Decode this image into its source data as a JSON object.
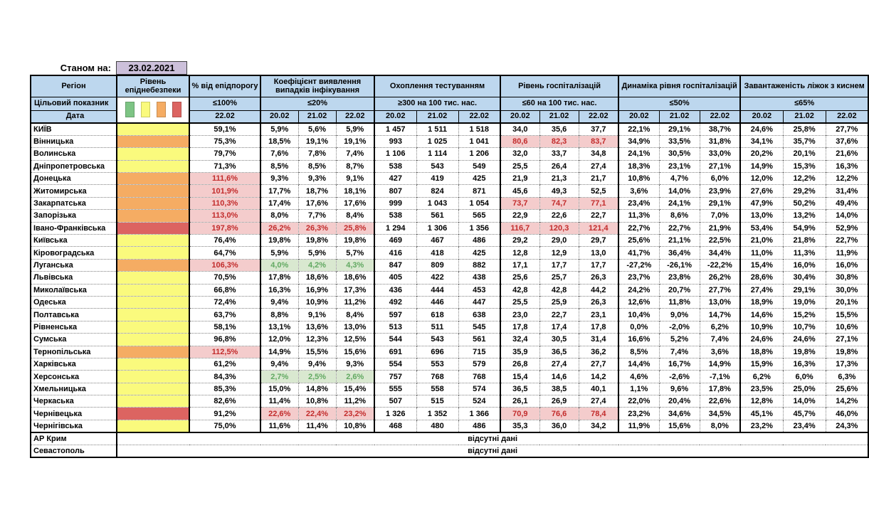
{
  "meta": {
    "as_of_label": "Станом на:",
    "as_of_date": "23.02.2021"
  },
  "columns": {
    "region": "Регіон",
    "level": "Рівень епіднебезпеки",
    "pct_threshold": "% від епідпорогу",
    "detection": "Коефіцієнт виявлення випадків інфікування",
    "testing": "Охоплення тестуванням",
    "hospitalization": "Рівень госпіталізацій",
    "dynamics": "Динаміка рівня госпіталізацій",
    "beds": "Завантаженість ліжок з киснем"
  },
  "labels": {
    "target_row": "Цільовий показник",
    "date_row": "Дата"
  },
  "targets": {
    "pct": "≤100%",
    "detection": "≤20%",
    "testing": "≥300 на 100 тис. нас.",
    "hospitalization": "≤60 на 100 тис. нас.",
    "dynamics": "≤50%",
    "beds": "≤65%"
  },
  "dates": {
    "single": "22.02",
    "triple": [
      "20.02",
      "21.02",
      "22.02"
    ]
  },
  "legend": {
    "colors": [
      "#7DC484",
      "#FAFA7D",
      "#F5AC63",
      "#DC6461"
    ],
    "names": [
      "green",
      "yellow",
      "orange",
      "red"
    ]
  },
  "no_data_text": "відсутні дані",
  "regions": [
    {
      "name": "КИЇВ",
      "level": "yellow",
      "pct": "59,1%",
      "pct_hl": "",
      "det": [
        "5,9%",
        "5,6%",
        "5,9%"
      ],
      "det_hl": "",
      "test": [
        "1 457",
        "1 511",
        "1 518"
      ],
      "hosp": [
        "34,0",
        "35,6",
        "37,7"
      ],
      "hosp_hl": "",
      "dyn": [
        "22,1%",
        "29,1%",
        "38,7%"
      ],
      "beds": [
        "24,6%",
        "25,8%",
        "27,7%"
      ]
    },
    {
      "name": "Вінницька",
      "level": "orange",
      "pct": "75,3%",
      "pct_hl": "",
      "det": [
        "18,5%",
        "19,1%",
        "19,1%"
      ],
      "det_hl": "",
      "test": [
        "993",
        "1 025",
        "1 041"
      ],
      "hosp": [
        "80,6",
        "82,3",
        "83,7"
      ],
      "hosp_hl": "pink",
      "dyn": [
        "34,9%",
        "33,5%",
        "31,8%"
      ],
      "beds": [
        "34,1%",
        "35,7%",
        "37,6%"
      ]
    },
    {
      "name": "Волинська",
      "level": "yellow",
      "pct": "79,7%",
      "pct_hl": "",
      "det": [
        "7,6%",
        "7,8%",
        "7,4%"
      ],
      "det_hl": "",
      "test": [
        "1 106",
        "1 114",
        "1 206"
      ],
      "hosp": [
        "32,0",
        "33,7",
        "34,8"
      ],
      "hosp_hl": "",
      "dyn": [
        "24,1%",
        "30,5%",
        "33,0%"
      ],
      "beds": [
        "20,2%",
        "20,1%",
        "21,6%"
      ]
    },
    {
      "name": "Дніпропетровська",
      "level": "yellow",
      "pct": "71,3%",
      "pct_hl": "",
      "det": [
        "8,5%",
        "8,5%",
        "8,7%"
      ],
      "det_hl": "",
      "test": [
        "538",
        "543",
        "549"
      ],
      "hosp": [
        "25,5",
        "26,4",
        "27,4"
      ],
      "hosp_hl": "",
      "dyn": [
        "18,3%",
        "23,1%",
        "27,1%"
      ],
      "beds": [
        "14,9%",
        "15,3%",
        "16,3%"
      ]
    },
    {
      "name": "Донецька",
      "level": "orange",
      "pct": "111,6%",
      "pct_hl": "pink",
      "det": [
        "9,3%",
        "9,3%",
        "9,1%"
      ],
      "det_hl": "",
      "test": [
        "427",
        "419",
        "425"
      ],
      "hosp": [
        "21,9",
        "21,3",
        "21,7"
      ],
      "hosp_hl": "",
      "dyn": [
        "10,8%",
        "4,7%",
        "6,0%"
      ],
      "beds": [
        "12,0%",
        "12,2%",
        "12,2%"
      ]
    },
    {
      "name": "Житомирська",
      "level": "orange",
      "pct": "101,9%",
      "pct_hl": "pink",
      "det": [
        "17,7%",
        "18,7%",
        "18,1%"
      ],
      "det_hl": "",
      "test": [
        "807",
        "824",
        "871"
      ],
      "hosp": [
        "45,6",
        "49,3",
        "52,5"
      ],
      "hosp_hl": "",
      "dyn": [
        "3,6%",
        "14,0%",
        "23,9%"
      ],
      "beds": [
        "27,6%",
        "29,2%",
        "31,4%"
      ]
    },
    {
      "name": "Закарпатська",
      "level": "orange",
      "pct": "110,3%",
      "pct_hl": "pink",
      "det": [
        "17,4%",
        "17,6%",
        "17,6%"
      ],
      "det_hl": "",
      "test": [
        "999",
        "1 043",
        "1 054"
      ],
      "hosp": [
        "73,7",
        "74,7",
        "77,1"
      ],
      "hosp_hl": "pink",
      "dyn": [
        "23,4%",
        "24,1%",
        "29,1%"
      ],
      "beds": [
        "47,9%",
        "50,2%",
        "49,4%"
      ]
    },
    {
      "name": "Запорізька",
      "level": "orange",
      "pct": "113,0%",
      "pct_hl": "pink",
      "det": [
        "8,0%",
        "7,7%",
        "8,4%"
      ],
      "det_hl": "",
      "test": [
        "538",
        "561",
        "565"
      ],
      "hosp": [
        "22,9",
        "22,6",
        "22,7"
      ],
      "hosp_hl": "",
      "dyn": [
        "11,3%",
        "8,6%",
        "7,0%"
      ],
      "beds": [
        "13,0%",
        "13,2%",
        "14,0%"
      ]
    },
    {
      "name": "Івано-Франківська",
      "level": "red",
      "pct": "197,8%",
      "pct_hl": "pink",
      "det": [
        "26,2%",
        "26,3%",
        "25,8%"
      ],
      "det_hl": "pink",
      "test": [
        "1 294",
        "1 306",
        "1 356"
      ],
      "hosp": [
        "116,7",
        "120,3",
        "121,4"
      ],
      "hosp_hl": "pink",
      "dyn": [
        "22,7%",
        "22,7%",
        "21,9%"
      ],
      "beds": [
        "53,4%",
        "54,9%",
        "52,9%"
      ]
    },
    {
      "name": "Київська",
      "level": "yellow",
      "pct": "76,4%",
      "pct_hl": "",
      "det": [
        "19,8%",
        "19,8%",
        "19,8%"
      ],
      "det_hl": "",
      "test": [
        "469",
        "467",
        "486"
      ],
      "hosp": [
        "29,2",
        "29,0",
        "29,7"
      ],
      "hosp_hl": "",
      "dyn": [
        "25,6%",
        "21,1%",
        "22,5%"
      ],
      "beds": [
        "21,0%",
        "21,8%",
        "22,7%"
      ]
    },
    {
      "name": "Кіровоградська",
      "level": "yellow",
      "pct": "64,7%",
      "pct_hl": "",
      "det": [
        "5,9%",
        "5,9%",
        "5,7%"
      ],
      "det_hl": "",
      "test": [
        "416",
        "418",
        "425"
      ],
      "hosp": [
        "12,8",
        "12,9",
        "13,0"
      ],
      "hosp_hl": "",
      "dyn": [
        "41,7%",
        "36,4%",
        "34,4%"
      ],
      "beds": [
        "11,0%",
        "11,3%",
        "11,9%"
      ]
    },
    {
      "name": "Луганська",
      "level": "orange",
      "pct": "106,3%",
      "pct_hl": "pink",
      "det": [
        "4,0%",
        "4,2%",
        "4,3%"
      ],
      "det_hl": "green",
      "test": [
        "847",
        "809",
        "882"
      ],
      "hosp": [
        "17,1",
        "17,7",
        "17,7"
      ],
      "hosp_hl": "",
      "dyn": [
        "-27,2%",
        "-26,1%",
        "-22,2%"
      ],
      "beds": [
        "15,4%",
        "16,0%",
        "16,0%"
      ]
    },
    {
      "name": "Львівська",
      "level": "yellow",
      "pct": "70,5%",
      "pct_hl": "",
      "det": [
        "17,8%",
        "18,6%",
        "18,6%"
      ],
      "det_hl": "",
      "test": [
        "405",
        "422",
        "438"
      ],
      "hosp": [
        "25,6",
        "25,7",
        "26,3"
      ],
      "hosp_hl": "",
      "dyn": [
        "23,7%",
        "23,8%",
        "26,2%"
      ],
      "beds": [
        "28,6%",
        "30,4%",
        "30,8%"
      ]
    },
    {
      "name": "Миколаївська",
      "level": "yellow",
      "pct": "66,8%",
      "pct_hl": "",
      "det": [
        "16,3%",
        "16,9%",
        "17,3%"
      ],
      "det_hl": "",
      "test": [
        "436",
        "444",
        "453"
      ],
      "hosp": [
        "42,8",
        "42,8",
        "44,2"
      ],
      "hosp_hl": "",
      "dyn": [
        "24,2%",
        "20,7%",
        "27,7%"
      ],
      "beds": [
        "27,4%",
        "29,1%",
        "30,0%"
      ]
    },
    {
      "name": "Одеська",
      "level": "yellow",
      "pct": "72,4%",
      "pct_hl": "",
      "det": [
        "9,4%",
        "10,9%",
        "11,2%"
      ],
      "det_hl": "",
      "test": [
        "492",
        "446",
        "447"
      ],
      "hosp": [
        "25,5",
        "25,9",
        "26,3"
      ],
      "hosp_hl": "",
      "dyn": [
        "12,6%",
        "11,8%",
        "13,0%"
      ],
      "beds": [
        "18,9%",
        "19,0%",
        "20,1%"
      ]
    },
    {
      "name": "Полтавська",
      "level": "yellow",
      "pct": "63,7%",
      "pct_hl": "",
      "det": [
        "8,8%",
        "9,1%",
        "8,4%"
      ],
      "det_hl": "",
      "test": [
        "597",
        "618",
        "638"
      ],
      "hosp": [
        "23,0",
        "22,7",
        "23,1"
      ],
      "hosp_hl": "",
      "dyn": [
        "10,4%",
        "9,0%",
        "14,7%"
      ],
      "beds": [
        "14,6%",
        "15,2%",
        "15,5%"
      ]
    },
    {
      "name": "Рівненська",
      "level": "yellow",
      "pct": "58,1%",
      "pct_hl": "",
      "det": [
        "13,1%",
        "13,6%",
        "13,0%"
      ],
      "det_hl": "",
      "test": [
        "513",
        "511",
        "545"
      ],
      "hosp": [
        "17,8",
        "17,4",
        "17,8"
      ],
      "hosp_hl": "",
      "dyn": [
        "0,0%",
        "-2,0%",
        "6,2%"
      ],
      "beds": [
        "10,9%",
        "10,7%",
        "10,6%"
      ]
    },
    {
      "name": "Сумська",
      "level": "yellow",
      "pct": "96,8%",
      "pct_hl": "",
      "det": [
        "12,0%",
        "12,3%",
        "12,5%"
      ],
      "det_hl": "",
      "test": [
        "544",
        "543",
        "561"
      ],
      "hosp": [
        "32,4",
        "30,5",
        "31,4"
      ],
      "hosp_hl": "",
      "dyn": [
        "16,6%",
        "5,2%",
        "7,4%"
      ],
      "beds": [
        "24,6%",
        "24,6%",
        "27,1%"
      ]
    },
    {
      "name": "Тернопільська",
      "level": "orange",
      "pct": "112,5%",
      "pct_hl": "pink",
      "det": [
        "14,9%",
        "15,5%",
        "15,6%"
      ],
      "det_hl": "",
      "test": [
        "691",
        "696",
        "715"
      ],
      "hosp": [
        "35,9",
        "36,5",
        "36,2"
      ],
      "hosp_hl": "",
      "dyn": [
        "8,5%",
        "7,4%",
        "3,6%"
      ],
      "beds": [
        "18,8%",
        "19,8%",
        "19,8%"
      ]
    },
    {
      "name": "Харківська",
      "level": "yellow",
      "pct": "61,2%",
      "pct_hl": "",
      "det": [
        "9,4%",
        "9,4%",
        "9,3%"
      ],
      "det_hl": "",
      "test": [
        "554",
        "553",
        "579"
      ],
      "hosp": [
        "26,8",
        "27,4",
        "27,7"
      ],
      "hosp_hl": "",
      "dyn": [
        "14,4%",
        "16,7%",
        "14,9%"
      ],
      "beds": [
        "15,9%",
        "16,3%",
        "17,3%"
      ]
    },
    {
      "name": "Херсонська",
      "level": "yellow",
      "pct": "84,3%",
      "pct_hl": "",
      "det": [
        "2,7%",
        "2,5%",
        "2,6%"
      ],
      "det_hl": "green",
      "test": [
        "757",
        "768",
        "768"
      ],
      "hosp": [
        "15,4",
        "14,6",
        "14,2"
      ],
      "hosp_hl": "",
      "dyn": [
        "4,6%",
        "-2,6%",
        "-7,1%"
      ],
      "beds": [
        "6,2%",
        "6,0%",
        "6,3%"
      ]
    },
    {
      "name": "Хмельницька",
      "level": "yellow",
      "pct": "85,3%",
      "pct_hl": "",
      "det": [
        "15,0%",
        "14,8%",
        "15,4%"
      ],
      "det_hl": "",
      "test": [
        "555",
        "558",
        "574"
      ],
      "hosp": [
        "36,5",
        "38,5",
        "40,1"
      ],
      "hosp_hl": "",
      "dyn": [
        "1,1%",
        "9,6%",
        "17,8%"
      ],
      "beds": [
        "23,5%",
        "25,0%",
        "25,6%"
      ]
    },
    {
      "name": "Черкаська",
      "level": "yellow",
      "pct": "82,6%",
      "pct_hl": "",
      "det": [
        "11,4%",
        "10,8%",
        "11,2%"
      ],
      "det_hl": "",
      "test": [
        "507",
        "515",
        "524"
      ],
      "hosp": [
        "26,1",
        "26,9",
        "27,4"
      ],
      "hosp_hl": "",
      "dyn": [
        "22,0%",
        "20,4%",
        "22,6%"
      ],
      "beds": [
        "12,8%",
        "14,0%",
        "14,2%"
      ]
    },
    {
      "name": "Чернівецька",
      "level": "red",
      "pct": "91,2%",
      "pct_hl": "",
      "det": [
        "22,6%",
        "22,4%",
        "23,2%"
      ],
      "det_hl": "pink",
      "test": [
        "1 326",
        "1 352",
        "1 366"
      ],
      "hosp": [
        "70,9",
        "76,6",
        "78,4"
      ],
      "hosp_hl": "pink",
      "dyn": [
        "23,2%",
        "34,6%",
        "34,5%"
      ],
      "beds": [
        "45,1%",
        "45,7%",
        "46,0%"
      ]
    },
    {
      "name": "Чернігівська",
      "level": "yellow",
      "pct": "75,0%",
      "pct_hl": "",
      "det": [
        "11,6%",
        "11,4%",
        "10,8%"
      ],
      "det_hl": "",
      "test": [
        "468",
        "480",
        "486"
      ],
      "hosp": [
        "35,3",
        "36,0",
        "34,2"
      ],
      "hosp_hl": "",
      "dyn": [
        "11,9%",
        "15,6%",
        "8,0%"
      ],
      "beds": [
        "23,2%",
        "23,4%",
        "24,3%"
      ]
    }
  ],
  "no_data_rows": [
    {
      "name": "АР Крим",
      "text": "відсутні дані"
    },
    {
      "name": "Севастополь",
      "text": "відсутні дані"
    }
  ]
}
